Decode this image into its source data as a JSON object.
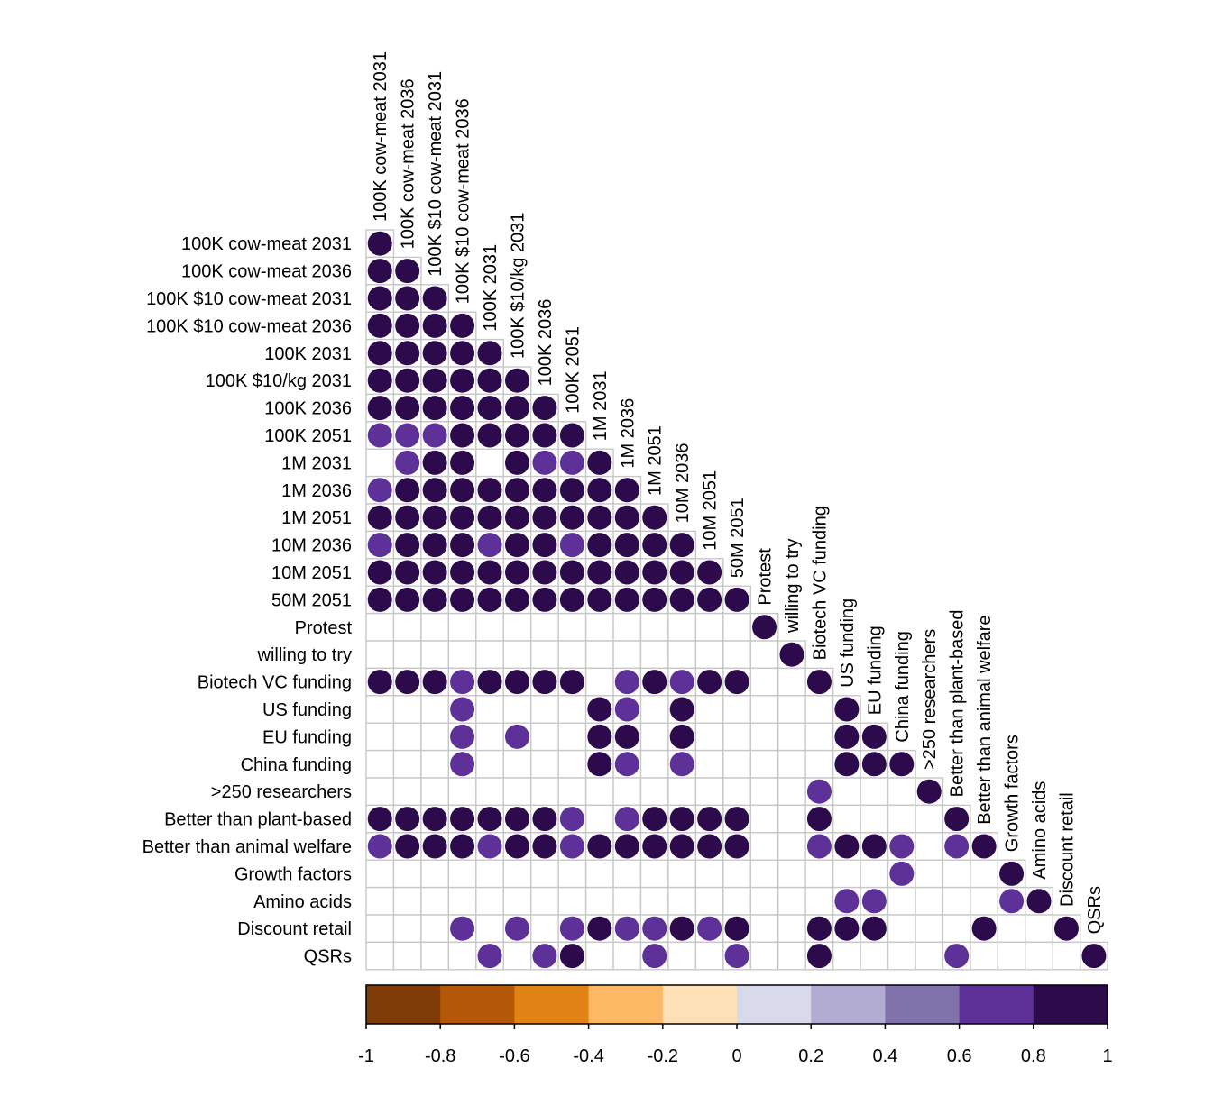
{
  "chart_data": {
    "type": "heatmap",
    "title": "",
    "labels": [
      "100K cow-meat 2031",
      "100K cow-meat 2036",
      "100K $10 cow-meat 2031",
      "100K $10 cow-meat 2036",
      "100K 2031",
      "100K $10/kg 2031",
      "100K 2036",
      "100K 2051",
      "1M 2031",
      "1M 2036",
      "1M 2051",
      "10M 2036",
      "10M 2051",
      "50M 2051",
      "Protest",
      "willing to try",
      "Biotech VC funding",
      "US funding",
      "EU funding",
      "China funding",
      ">250 researchers",
      "Better than plant-based",
      "Better than animal welfare",
      "Growth factors",
      "Amino acids",
      "Discount retail",
      "QSRs"
    ],
    "matrix": [
      [
        0.9
      ],
      [
        0.9,
        0.9
      ],
      [
        0.9,
        0.9,
        0.9
      ],
      [
        0.9,
        0.9,
        0.9,
        0.9
      ],
      [
        0.9,
        0.9,
        0.9,
        0.9,
        0.9
      ],
      [
        0.9,
        0.9,
        0.9,
        0.9,
        0.9,
        0.9
      ],
      [
        0.9,
        0.9,
        0.9,
        0.9,
        0.9,
        0.9,
        0.9
      ],
      [
        0.7,
        0.7,
        0.7,
        0.9,
        0.9,
        0.9,
        0.9,
        0.9
      ],
      [
        null,
        0.7,
        0.9,
        0.9,
        null,
        0.9,
        0.7,
        0.7,
        0.9
      ],
      [
        0.7,
        0.9,
        0.9,
        0.9,
        0.9,
        0.9,
        0.9,
        0.9,
        0.9,
        0.9
      ],
      [
        0.9,
        0.9,
        0.9,
        0.9,
        0.9,
        0.9,
        0.9,
        0.9,
        0.9,
        0.9,
        0.9
      ],
      [
        0.7,
        0.9,
        0.9,
        0.9,
        0.7,
        0.9,
        0.9,
        0.7,
        0.9,
        0.9,
        0.9,
        0.9
      ],
      [
        0.9,
        0.9,
        0.9,
        0.9,
        0.9,
        0.9,
        0.9,
        0.9,
        0.9,
        0.9,
        0.9,
        0.9,
        0.9
      ],
      [
        0.9,
        0.9,
        0.9,
        0.9,
        0.9,
        0.9,
        0.9,
        0.9,
        0.9,
        0.9,
        0.9,
        0.9,
        0.9,
        0.9
      ],
      [
        null,
        null,
        null,
        null,
        null,
        null,
        null,
        null,
        null,
        null,
        null,
        null,
        null,
        null,
        0.9
      ],
      [
        null,
        null,
        null,
        null,
        null,
        null,
        null,
        null,
        null,
        null,
        null,
        null,
        null,
        null,
        null,
        0.9
      ],
      [
        0.9,
        0.9,
        0.9,
        0.7,
        0.9,
        0.9,
        0.9,
        0.9,
        null,
        0.7,
        0.9,
        0.7,
        0.9,
        0.9,
        null,
        null,
        0.9
      ],
      [
        null,
        null,
        null,
        0.7,
        null,
        null,
        null,
        null,
        0.9,
        0.7,
        null,
        0.9,
        null,
        null,
        null,
        null,
        null,
        0.9
      ],
      [
        null,
        null,
        null,
        0.7,
        null,
        0.7,
        null,
        null,
        0.9,
        0.9,
        null,
        0.9,
        null,
        null,
        null,
        null,
        null,
        0.9,
        0.9
      ],
      [
        null,
        null,
        null,
        0.7,
        null,
        null,
        null,
        null,
        0.9,
        0.7,
        null,
        0.7,
        null,
        null,
        null,
        null,
        null,
        0.9,
        0.9,
        0.9
      ],
      [
        null,
        null,
        null,
        null,
        null,
        null,
        null,
        null,
        null,
        null,
        null,
        null,
        null,
        null,
        null,
        null,
        0.7,
        null,
        null,
        null,
        0.9
      ],
      [
        0.9,
        0.9,
        0.9,
        0.9,
        0.9,
        0.9,
        0.9,
        0.7,
        null,
        0.7,
        0.9,
        0.9,
        0.9,
        0.9,
        null,
        null,
        0.9,
        null,
        null,
        null,
        null,
        0.9
      ],
      [
        0.7,
        0.9,
        0.9,
        0.9,
        0.7,
        0.9,
        0.9,
        0.7,
        0.9,
        0.9,
        0.9,
        0.9,
        0.9,
        0.9,
        null,
        null,
        0.7,
        0.9,
        0.9,
        0.7,
        null,
        0.7,
        0.9
      ],
      [
        null,
        null,
        null,
        null,
        null,
        null,
        null,
        null,
        null,
        null,
        null,
        null,
        null,
        null,
        null,
        null,
        null,
        null,
        null,
        0.7,
        null,
        null,
        null,
        0.9
      ],
      [
        null,
        null,
        null,
        null,
        null,
        null,
        null,
        null,
        null,
        null,
        null,
        null,
        null,
        null,
        null,
        null,
        null,
        0.7,
        0.7,
        null,
        null,
        null,
        null,
        0.7,
        0.9
      ],
      [
        null,
        null,
        null,
        0.7,
        null,
        0.7,
        null,
        0.7,
        0.9,
        0.7,
        0.7,
        0.9,
        0.7,
        0.9,
        null,
        null,
        0.9,
        0.9,
        0.9,
        null,
        null,
        null,
        0.9,
        null,
        null,
        0.9
      ],
      [
        null,
        null,
        null,
        null,
        0.7,
        null,
        0.7,
        0.9,
        null,
        null,
        0.7,
        null,
        null,
        0.7,
        null,
        null,
        0.9,
        null,
        null,
        null,
        null,
        0.7,
        null,
        null,
        null,
        null,
        0.9
      ]
    ],
    "colorbar": {
      "range": [
        -1,
        1
      ],
      "tick_labels": [
        "-1",
        "-0.8",
        "-0.6",
        "-0.4",
        "-0.2",
        "0",
        "0.2",
        "0.4",
        "0.6",
        "0.8",
        "1"
      ],
      "colors": [
        "#7f3b08",
        "#b35806",
        "#e08214",
        "#fdb863",
        "#fee0b6",
        "#d8daeb",
        "#b2abd2",
        "#8073ac",
        "#5e3199",
        "#2d0a4b"
      ]
    },
    "grid": true
  }
}
